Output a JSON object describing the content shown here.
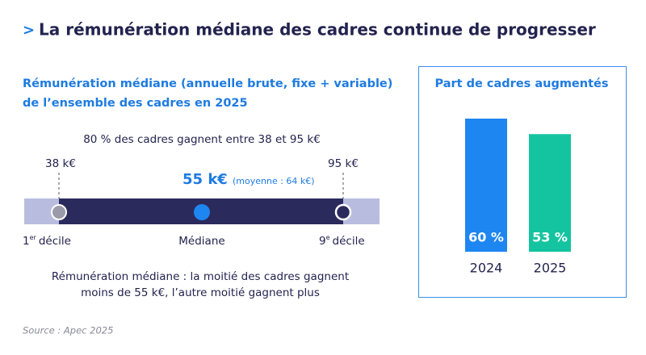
{
  "header": {
    "marker": ">",
    "title": "La rémunération médiane des cadres continue de progresser"
  },
  "range_panel": {
    "title_lines": [
      "Rémunération médiane (annuelle brute, fixe + variable)",
      "de l’ensemble des cadres en 2025"
    ],
    "range_caption": "80 % des cadres gagnent entre 38 et 95 k€",
    "low_label": "38 k€",
    "high_label": "95 k€",
    "median_label": "55 k€",
    "mean_label": "(moyenne : 64 k€)",
    "low_marker": {
      "number": "1",
      "suffix": "er",
      "text": "décile"
    },
    "median_marker": "Médiane",
    "high_marker": {
      "number": "9",
      "suffix": "e",
      "text": "décile"
    },
    "note_lines": [
      "Rémunération médiane : la moitié des cadres gagnent",
      "moins de 55 k€, l’autre moitié gagnent plus"
    ]
  },
  "chart_data": {
    "type": "bar",
    "title": "Part de cadres augmentés",
    "categories": [
      "2024",
      "2025"
    ],
    "values": [
      60,
      53
    ],
    "value_labels": [
      "60 %",
      "53 %"
    ],
    "colors": [
      "#1e86f0",
      "#14c4a0"
    ]
  },
  "footer": {
    "source": "Source :  Apec 2025"
  }
}
